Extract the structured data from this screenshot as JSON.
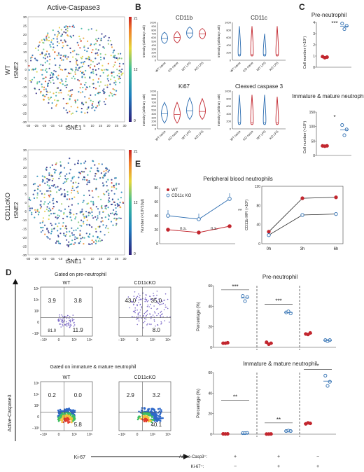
{
  "panel_letters": {
    "b": "B",
    "c": "C",
    "d": "D",
    "e": "E"
  },
  "tsne": {
    "title": "Active-Caspase3",
    "xlabel": "tSNE1",
    "ylabel": "tSNE2",
    "xticks": [
      "-30",
      "-25",
      "-20",
      "-15",
      "-10",
      "-5",
      "0",
      "5",
      "10",
      "15",
      "20",
      "25",
      "30"
    ],
    "yticks": [
      "30",
      "25",
      "20",
      "15",
      "10",
      "5",
      "0",
      "-5",
      "-10",
      "-15",
      "-20",
      "-25",
      "-30"
    ],
    "colorbar_ticks": [
      "21",
      "12",
      "0"
    ],
    "row_labels": [
      "WT",
      "CD11cKO"
    ]
  },
  "violin": {
    "ylabel": "Intensity (arbitrary unit)",
    "groups": [
      "WT naive",
      "KO naive",
      "WT LPS",
      "KO LPS"
    ],
    "colors": {
      "wt": "#2b6cb0",
      "ko": "#c2262e"
    },
    "panels": [
      {
        "title": "CD11b",
        "yticks": [
          "1000",
          "900",
          "800",
          "700",
          "600",
          "500",
          "400",
          "300",
          "200",
          "100",
          "0"
        ]
      },
      {
        "title": "CD11c",
        "yticks": [
          "1000",
          "800",
          "600",
          "400",
          "200",
          "0"
        ]
      },
      {
        "title": "Ki67",
        "yticks": [
          "1000",
          "900",
          "800",
          "700",
          "600",
          "500",
          "400",
          "300",
          "200",
          "100",
          "0"
        ]
      },
      {
        "title": "Cleaved caspase 3",
        "yticks": [
          "1000",
          "800",
          "600",
          "400",
          "200",
          "0"
        ]
      }
    ]
  },
  "chart_data": [
    {
      "type": "scatter",
      "panel": "C",
      "title": "Pre-neutrophil",
      "ylabel": "Cell number (×10⁵)",
      "ylim": [
        0,
        4
      ],
      "yticks": [
        "4",
        "3",
        "2",
        "1",
        "0"
      ],
      "series": [
        {
          "name": "WT",
          "values": [
            0.95,
            0.85,
            0.9
          ]
        },
        {
          "name": "CD11cKO",
          "values": [
            3.9,
            3.4,
            3.7
          ]
        }
      ],
      "annotation": "***"
    },
    {
      "type": "scatter",
      "panel": "C",
      "title": "Immature & mature neutrophil",
      "ylabel": "Cell number (×10⁵)",
      "ylim": [
        0,
        150
      ],
      "yticks": [
        "150",
        "100",
        "50",
        "0"
      ],
      "series": [
        {
          "name": "WT",
          "values": [
            33,
            32,
            33
          ]
        },
        {
          "name": "CD11cKO",
          "values": [
            105,
            70,
            90
          ]
        }
      ],
      "annotation": "*"
    },
    {
      "type": "line",
      "panel": "E",
      "title": "Peripheral blood neutrophils",
      "ylabel": "Number (×10³/10µl)",
      "ylim": [
        0,
        80
      ],
      "yticks": [
        "80",
        "60",
        "40",
        "20",
        "0"
      ],
      "x": [
        "0h",
        "3h",
        "6h"
      ],
      "series": [
        {
          "name": "WT",
          "values": [
            20,
            16,
            25
          ]
        },
        {
          "name": "CD11c KO",
          "values": [
            40,
            35,
            64
          ]
        }
      ],
      "annotations": [
        "n.s.",
        "n.s.",
        "**"
      ]
    },
    {
      "type": "line",
      "panel": "E",
      "ylabel": "CD11b MFI (×10³)",
      "ylim": [
        0,
        120
      ],
      "yticks": [
        "120",
        "80",
        "40",
        "0"
      ],
      "x": [
        "0h",
        "3h",
        "6h"
      ],
      "series": [
        {
          "name": "WT",
          "values": [
            25,
            95,
            97
          ]
        },
        {
          "name": "CD11c KO",
          "values": [
            18,
            60,
            62
          ]
        }
      ]
    },
    {
      "type": "scatter",
      "panel": "D",
      "title": "Pre-neutrophil",
      "ylabel": "Percentage (%)",
      "ylim": [
        0,
        60
      ],
      "yticks": [
        "60",
        "40",
        "20",
        "0"
      ],
      "categories": [
        "+/−",
        "+/+",
        "−/+"
      ],
      "series": [
        {
          "name": "WT",
          "values": [
            [
              4,
              4,
              4.5
            ],
            [
              5,
              3,
              4
            ],
            [
              13,
              12.5,
              14
            ]
          ]
        },
        {
          "name": "CD11cKO",
          "values": [
            [
              50,
              45,
              49
            ],
            [
              34,
              35,
              33
            ],
            [
              7,
              6,
              7
            ]
          ]
        }
      ],
      "annotations": [
        "***",
        "***"
      ]
    },
    {
      "type": "scatter",
      "panel": "D",
      "title": "Immature & mature neutrophil",
      "ylabel": "Percentage (%)",
      "ylim": [
        0,
        60
      ],
      "yticks": [
        "60",
        "40",
        "20",
        "0"
      ],
      "categories": [
        "+/−",
        "+/+",
        "−/+"
      ],
      "series": [
        {
          "name": "WT",
          "values": [
            [
              0.3,
              0.2,
              0.3
            ],
            [
              0.1,
              0.1,
              0.2
            ],
            [
              10,
              11,
              10.5
            ]
          ]
        },
        {
          "name": "CD11cKO",
          "values": [
            [
              1,
              1,
              1.2
            ],
            [
              3,
              3.5,
              3
            ]
          ],
          "extra": [
            [
              57,
              47,
              51
            ]
          ]
        }
      ],
      "annotations": [
        "**",
        "**",
        "*"
      ]
    }
  ],
  "flow": {
    "title_top": "Gated on pre-neutrophil",
    "title_bottom": "Gated on immature & mature neutrophil",
    "col_labels": [
      "WT",
      "CD11cKO"
    ],
    "xlabel": "Ki-67",
    "ylabel": "Active-Caspase3",
    "xticks": [
      "−10³",
      "0",
      "10³",
      "10⁵"
    ],
    "yticks": [
      "10⁵",
      "10⁴",
      "10³",
      "0",
      "−10³"
    ],
    "top_quadrants": [
      [
        "3.9",
        "3.8",
        "81.0",
        "11.9"
      ],
      [
        "43.0",
        "35.0",
        "",
        "8.0"
      ]
    ],
    "bottom_quadrants": [
      [
        "0.2",
        "0.0",
        "",
        "5.8"
      ],
      [
        "2.9",
        "3.2",
        "",
        "40.1"
      ]
    ]
  },
  "d_table": {
    "rows": [
      "Active-Casp3⁺:",
      "Ki-67⁺:"
    ],
    "signs": [
      [
        "+",
        "+",
        "−"
      ],
      [
        "−",
        "+",
        "+"
      ]
    ]
  }
}
